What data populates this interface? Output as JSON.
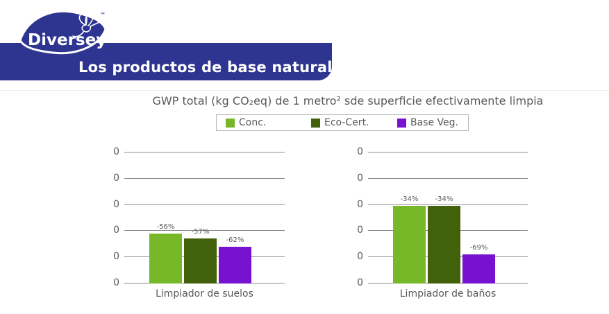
{
  "brand": {
    "logo_text": "Diversey",
    "trademark_symbol": "™"
  },
  "banner": {
    "text": "Los productos de base natural ayudan"
  },
  "colors": {
    "brand_blue": "#2E3591",
    "text_gray": "#595959",
    "gridline_gray": "#8C8C8C",
    "legend_border": "#B4B4B4",
    "background": "#FFFFFF",
    "series_conc": "#77B829",
    "series_ecocert": "#42610B",
    "series_baseveg": "#7712D0"
  },
  "chart_data": {
    "type": "bar",
    "title": "GWP total (kg CO₂eq) de 1 metro² sde superficie efectivamente limpia",
    "categories": [
      "Limpiador de suelos",
      "Limpiador de baños"
    ],
    "series": [
      {
        "name": "Conc.",
        "color": "#77B829",
        "values": [
          1.9,
          2.95
        ],
        "labels": [
          "-56%",
          "-34%"
        ]
      },
      {
        "name": "Eco-Cert.",
        "color": "#42610B",
        "values": [
          1.7,
          2.95
        ],
        "labels": [
          "-57%",
          "-34%"
        ]
      },
      {
        "name": "Base Veg.",
        "color": "#7712D0",
        "values": [
          1.4,
          1.1
        ],
        "labels": [
          "-62%",
          "-69%"
        ]
      }
    ],
    "y_tick_labels": [
      "0",
      "0",
      "0",
      "0",
      "0",
      "0"
    ],
    "ylim": [
      0,
      5
    ],
    "grid": true,
    "legend_position": "top"
  }
}
